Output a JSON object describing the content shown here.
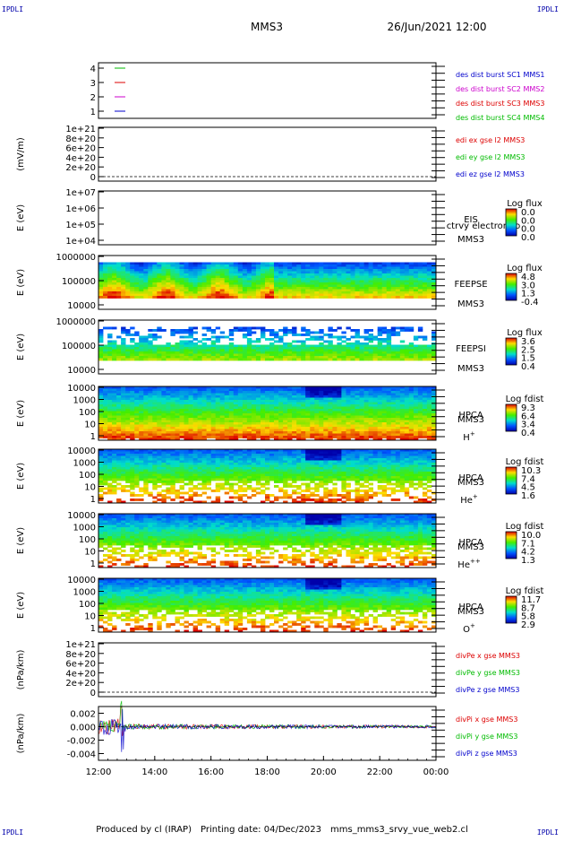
{
  "header": {
    "corner_label": "IPDLI",
    "spacecraft": "MMS3",
    "datetime": "26/Jun/2021 12:00"
  },
  "footer": {
    "produced_by": "Produced by cl (IRAP)",
    "printing_date": "Printing date: 04/Dec/2023",
    "script_name": "mms_mms3_srvy_vue_web2.cl"
  },
  "colors": {
    "sc1": "#0000cc",
    "sc2": "#cc00cc",
    "sc3": "#dd0000",
    "sc4": "#00bb00"
  },
  "chart_data": [
    {
      "type": "line",
      "id": "burst",
      "ylim": [
        0.5,
        4.5
      ],
      "yticks": [
        "4",
        "3",
        "2",
        "1"
      ],
      "legend": [
        {
          "label": "des dist burst SC1 MMS1",
          "color": "#0000cc"
        },
        {
          "label": "des dist burst SC2 MMS2",
          "color": "#cc00cc"
        },
        {
          "label": "des dist burst SC3 MMS3",
          "color": "#dd0000"
        },
        {
          "label": "des dist burst SC4 MMS4",
          "color": "#00bb00"
        }
      ]
    },
    {
      "type": "line",
      "id": "edi",
      "ylabel": "(mV/m)",
      "yticks": [
        "1e+21",
        "8e+20",
        "6e+20",
        "4e+20",
        "2e+20",
        "0"
      ],
      "legend": [
        {
          "label": "edi ex gse l2 MMS3",
          "color": "#dd0000"
        },
        {
          "label": "edi ey gse l2 MMS3",
          "color": "#00bb00"
        },
        {
          "label": "edi ez gse l2 MMS3",
          "color": "#0000cc"
        }
      ]
    },
    {
      "type": "heatmap",
      "id": "eis",
      "ylabel": "E (eV)",
      "yticks": [
        "1e+07",
        "1e+06",
        "1e+05",
        "1e+04"
      ],
      "right_labels": [
        "EIS",
        "MMS3"
      ],
      "extra_label": "ctrvy electron to",
      "colorbar_title": "Log flux",
      "colorbar_ticks": [
        "0.0",
        "0.0",
        "0.0",
        "0.0"
      ]
    },
    {
      "type": "heatmap",
      "id": "feepse",
      "ylabel": "E (eV)",
      "yticks": [
        "1000000",
        "100000",
        "10000"
      ],
      "right_labels": [
        "FEEPSE",
        "MMS3"
      ],
      "colorbar_title": "Log flux",
      "colorbar_ticks": [
        "4.8",
        "3.0",
        "1.3",
        "-0.4"
      ]
    },
    {
      "type": "heatmap",
      "id": "feepsi",
      "ylabel": "E (eV)",
      "yticks": [
        "1000000",
        "100000",
        "10000"
      ],
      "right_labels": [
        "FEEPSI",
        "MMS3"
      ],
      "colorbar_title": "Log flux",
      "colorbar_ticks": [
        "3.6",
        "2.5",
        "1.5",
        "0.4"
      ]
    },
    {
      "type": "heatmap",
      "id": "hpca_h",
      "ylabel": "E (eV)",
      "yticks": [
        "10000",
        "1000",
        "100",
        "10",
        "1"
      ],
      "right_labels": [
        "HPCA",
        "MMS3"
      ],
      "species": "H",
      "species_sup": "+",
      "colorbar_title": "Log fdist",
      "colorbar_ticks": [
        "9.3",
        "6.4",
        "3.4",
        "0.4"
      ]
    },
    {
      "type": "heatmap",
      "id": "hpca_he",
      "ylabel": "E (eV)",
      "yticks": [
        "10000",
        "1000",
        "100",
        "10",
        "1"
      ],
      "right_labels": [
        "HPCA",
        "MMS3"
      ],
      "species": "He",
      "species_sup": "+",
      "colorbar_title": "Log fdist",
      "colorbar_ticks": [
        "10.3",
        "7.4",
        "4.5",
        "1.6"
      ]
    },
    {
      "type": "heatmap",
      "id": "hpca_hepp",
      "ylabel": "E (eV)",
      "yticks": [
        "10000",
        "1000",
        "100",
        "10",
        "1"
      ],
      "right_labels": [
        "HPCA",
        "MMS3"
      ],
      "species": "He",
      "species_sup": "++",
      "colorbar_title": "Log fdist",
      "colorbar_ticks": [
        "10.0",
        "7.1",
        "4.2",
        "1.3"
      ]
    },
    {
      "type": "heatmap",
      "id": "hpca_o",
      "ylabel": "E (eV)",
      "yticks": [
        "10000",
        "1000",
        "100",
        "10",
        "1"
      ],
      "right_labels": [
        "HPCA",
        "MMS3"
      ],
      "species": "O",
      "species_sup": "+",
      "colorbar_title": "Log fdist",
      "colorbar_ticks": [
        "11.7",
        "8.7",
        "5.8",
        "2.9"
      ]
    },
    {
      "type": "line",
      "id": "divpe",
      "ylabel": "(nPa/km)",
      "yticks": [
        "1e+21",
        "8e+20",
        "6e+20",
        "4e+20",
        "2e+20",
        "0"
      ],
      "legend": [
        {
          "label": "divPe x gse MMS3",
          "color": "#dd0000"
        },
        {
          "label": "divPe y gse MMS3",
          "color": "#00bb00"
        },
        {
          "label": "divPe z gse MMS3",
          "color": "#0000cc"
        }
      ]
    },
    {
      "type": "line",
      "id": "divpi",
      "ylabel": "(nPa/km)",
      "ylim": [
        -0.005,
        0.003
      ],
      "yticks": [
        "0.002",
        "0.000",
        "-0.002",
        "-0.004"
      ],
      "ytick_values": [
        0.002,
        0.0,
        -0.002,
        -0.004
      ],
      "legend": [
        {
          "label": "divPi x gse MMS3",
          "color": "#dd0000"
        },
        {
          "label": "divPi y gse MMS3",
          "color": "#00bb00"
        },
        {
          "label": "divPi z gse MMS3",
          "color": "#0000cc"
        }
      ]
    }
  ],
  "xaxis": {
    "ticks": [
      "12:00",
      "14:00",
      "16:00",
      "18:00",
      "20:00",
      "22:00",
      "00:00"
    ]
  }
}
